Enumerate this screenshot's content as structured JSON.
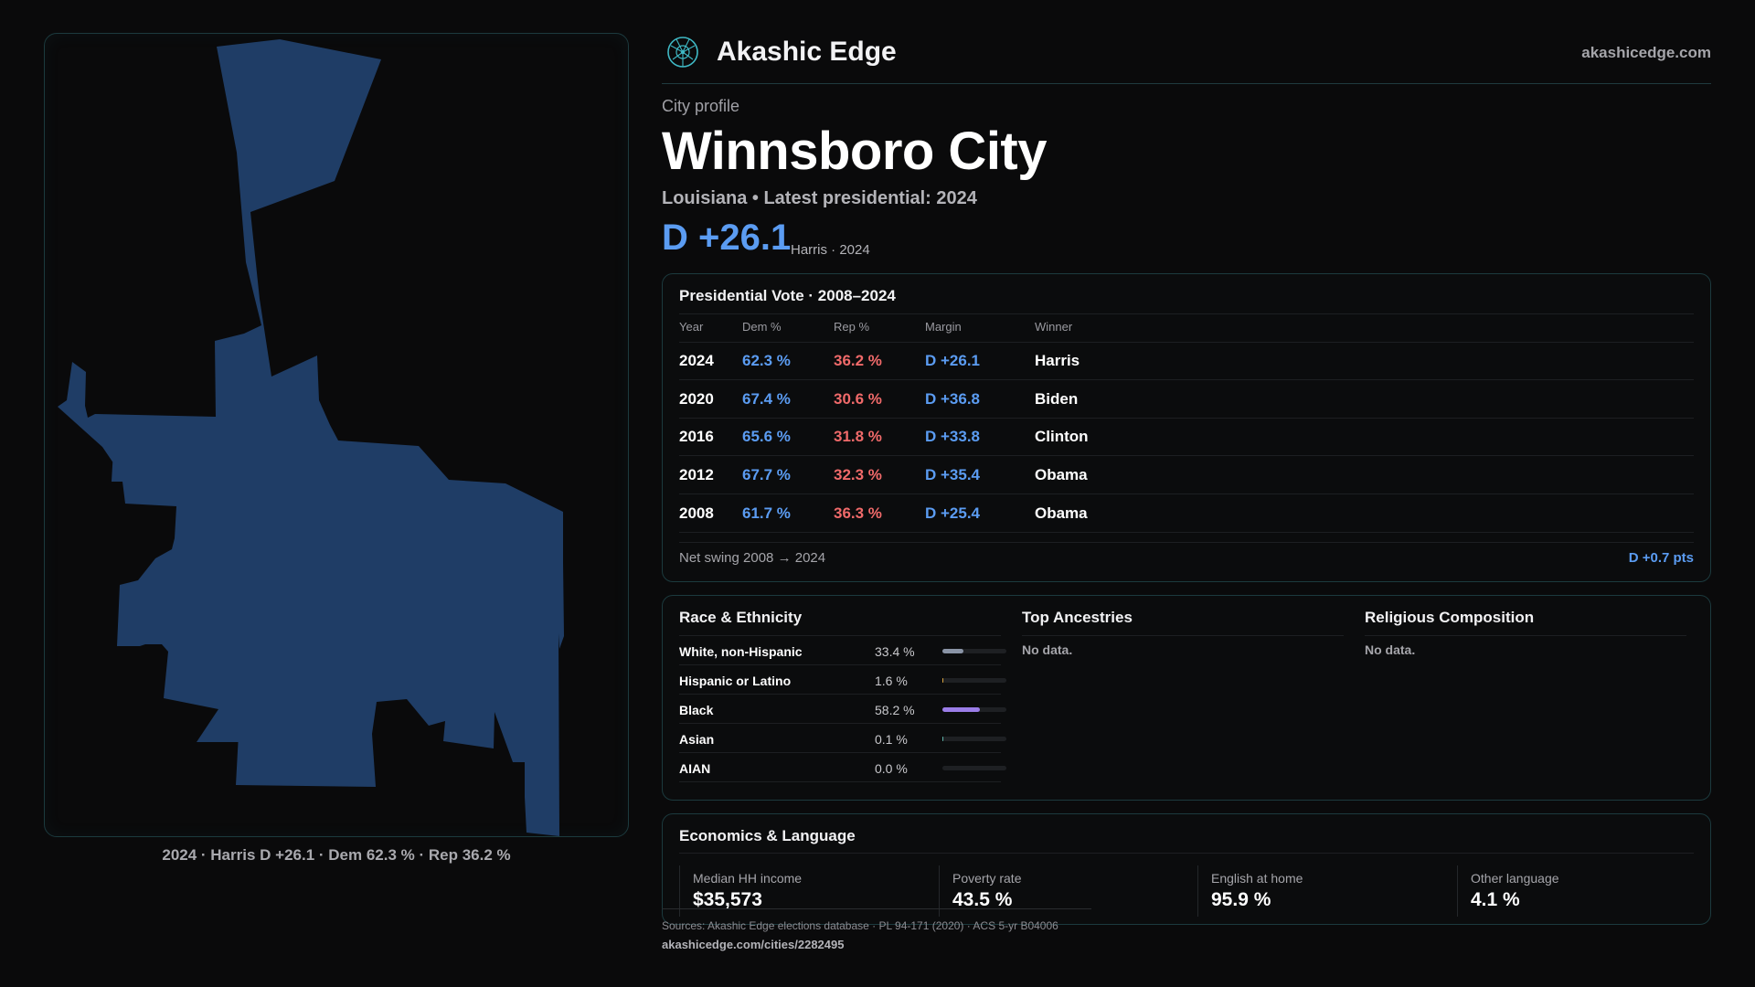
{
  "brand": {
    "name": "Akashic Edge",
    "site": "akashicedge.com",
    "logo_icon": "globe-network-icon"
  },
  "header": {
    "kicker": "City profile",
    "city": "Winnsboro City",
    "subtitle": "Louisiana • Latest presidential: 2024",
    "margin": "D +26.1",
    "margin_note": "Harris · 2024"
  },
  "map": {
    "caption": "2024 · Harris D +26.1 · Dem 62.3 % · Rep 36.2 %",
    "fill_color": "#1f3d66"
  },
  "vote": {
    "title": "Presidential Vote · 2008–2024",
    "columns": [
      "Year",
      "Dem %",
      "Rep %",
      "Margin",
      "Winner"
    ],
    "rows": [
      {
        "year": "2024",
        "dem": "62.3 %",
        "rep": "36.2 %",
        "margin": "D +26.1",
        "winner": "Harris"
      },
      {
        "year": "2020",
        "dem": "67.4 %",
        "rep": "30.6 %",
        "margin": "D +36.8",
        "winner": "Biden"
      },
      {
        "year": "2016",
        "dem": "65.6 %",
        "rep": "31.8 %",
        "margin": "D +33.8",
        "winner": "Clinton"
      },
      {
        "year": "2012",
        "dem": "67.7 %",
        "rep": "32.3 %",
        "margin": "D +35.4",
        "winner": "Obama"
      },
      {
        "year": "2008",
        "dem": "61.7 %",
        "rep": "36.3 %",
        "margin": "D +25.4",
        "winner": "Obama"
      }
    ],
    "swing_label": "Net swing 2008 → 2024",
    "swing_value": "D +0.7 pts"
  },
  "race": {
    "title": "Race & Ethnicity",
    "rows": [
      {
        "label": "White, non-Hispanic",
        "pct": "33.4 %",
        "value": 33.4,
        "color": "#8a94a6"
      },
      {
        "label": "Hispanic or Latino",
        "pct": "1.6 %",
        "value": 1.6,
        "color": "#d9a441"
      },
      {
        "label": "Black",
        "pct": "58.2 %",
        "value": 58.2,
        "color": "#9b7de8"
      },
      {
        "label": "Asian",
        "pct": "0.1 %",
        "value": 0.1,
        "color": "#5fb3a8"
      },
      {
        "label": "AIAN",
        "pct": "0.0 %",
        "value": 0.0,
        "color": "#c07a5a"
      }
    ]
  },
  "ancestry": {
    "title": "Top Ancestries",
    "empty": "No data."
  },
  "religion": {
    "title": "Religious Composition",
    "empty": "No data."
  },
  "econ": {
    "title": "Economics & Language",
    "stats": [
      {
        "label": "Median HH income",
        "value": "$35,573"
      },
      {
        "label": "Poverty rate",
        "value": "43.5 %"
      },
      {
        "label": "English at home",
        "value": "95.9 %"
      },
      {
        "label": "Other language",
        "value": "4.1 %"
      }
    ]
  },
  "footer": {
    "sources": "Sources: Akashic Edge elections database · PL 94-171 (2020) · ACS 5-yr B04006",
    "url": "akashicedge.com/cities/2282495"
  },
  "colors": {
    "dem": "#5b9cf2",
    "rep": "#f06a6a",
    "accent_border": "#1c3a3e"
  }
}
